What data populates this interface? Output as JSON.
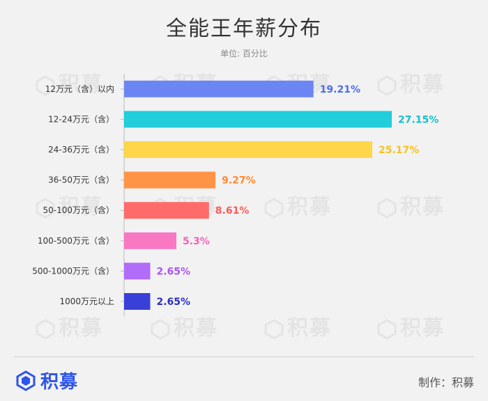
{
  "header": {
    "title": "全能王年薪分布",
    "subtitle": "单位: 百分比"
  },
  "watermark": {
    "text": "积募"
  },
  "footer": {
    "brand": "积募",
    "credit": "制作：积募"
  },
  "chart_data": {
    "type": "bar",
    "orientation": "horizontal",
    "title": "全能王年薪分布",
    "subtitle": "单位: 百分比",
    "unit": "%",
    "xlim": [
      0,
      30
    ],
    "grid": false,
    "categories": [
      "12万元（含）以内",
      "12-24万元（含）",
      "24-36万元（含）",
      "36-50万元（含）",
      "50-100万元（含）",
      "100-500万元（含）",
      "500-1000万元（含）",
      "1000万元以上"
    ],
    "values": [
      19.21,
      27.15,
      25.17,
      9.27,
      8.61,
      5.3,
      2.65,
      2.65
    ],
    "value_labels": [
      "19.21%",
      "27.15%",
      "25.17%",
      "9.27%",
      "8.61%",
      "5.3%",
      "2.65%",
      "2.65%"
    ],
    "colors": [
      "#6b86f2",
      "#22cedb",
      "#ffd54a",
      "#ff9447",
      "#ff6b6b",
      "#f878c4",
      "#b16cf9",
      "#3a3fd8"
    ],
    "label_colors": [
      "#4d6bf0",
      "#17bfcc",
      "#f5c221",
      "#ff8a2f",
      "#ff5a5a",
      "#f462b6",
      "#a855f7",
      "#2a2fc4"
    ]
  }
}
